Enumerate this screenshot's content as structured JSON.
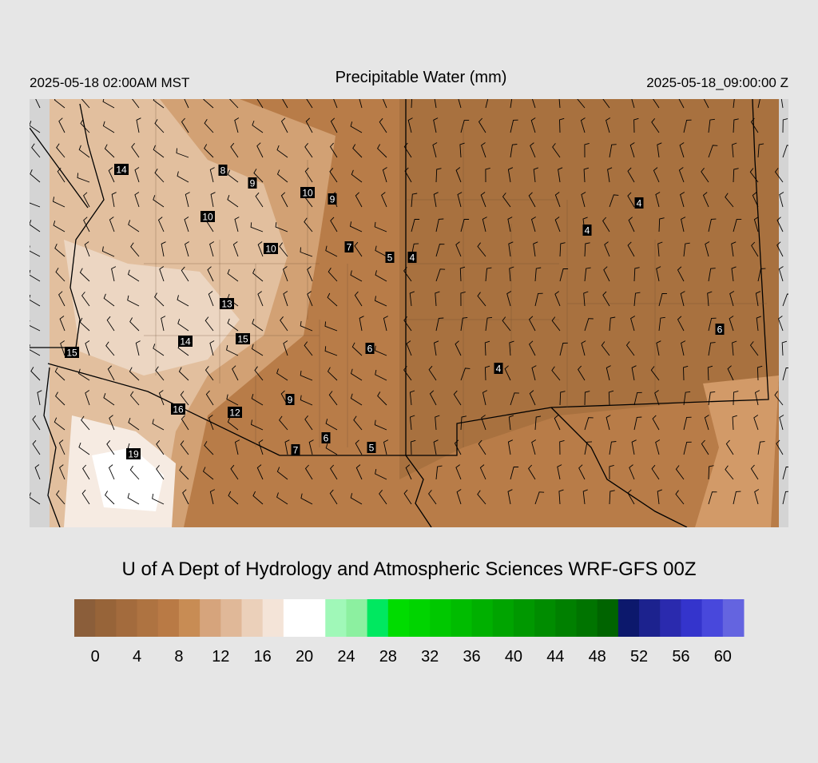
{
  "header": {
    "title": "Precipitable Water (mm)",
    "valid_local": "2025-05-18 02:00AM MST",
    "valid_utc": "2025-05-18_09:00:00 Z"
  },
  "map": {
    "station_values": [
      14,
      8,
      9,
      10,
      9,
      10,
      10,
      7,
      5,
      4,
      4,
      4,
      13,
      15,
      14,
      15,
      6,
      4,
      6,
      9,
      16,
      12,
      6,
      7,
      5,
      19
    ]
  },
  "footer": {
    "credit": "U of A Dept of Hydrology and Atmospheric Sciences WRF-GFS 00Z"
  },
  "colorbar": {
    "colors": [
      "#8b5e3a",
      "#976439",
      "#a36b3d",
      "#ae7341",
      "#b97a45",
      "#c88c54",
      "#d6a47c",
      "#e0b898",
      "#ebd0ba",
      "#f4e4d8",
      "#ffffff",
      "#ffffff",
      "#a0f8b8",
      "#8cf0a0",
      "#00e860",
      "#00dc00",
      "#00d400",
      "#00c800",
      "#00bc00",
      "#00b000",
      "#00a400",
      "#009800",
      "#008c00",
      "#008000",
      "#007400",
      "#006400",
      "#0c186c",
      "#1c228e",
      "#2a2aae",
      "#3434cc",
      "#4848dc",
      "#6464e0"
    ],
    "range": [
      -2,
      62
    ],
    "ticks": [
      0,
      4,
      8,
      12,
      16,
      20,
      24,
      28,
      32,
      36,
      40,
      44,
      48,
      52,
      56,
      60
    ]
  }
}
